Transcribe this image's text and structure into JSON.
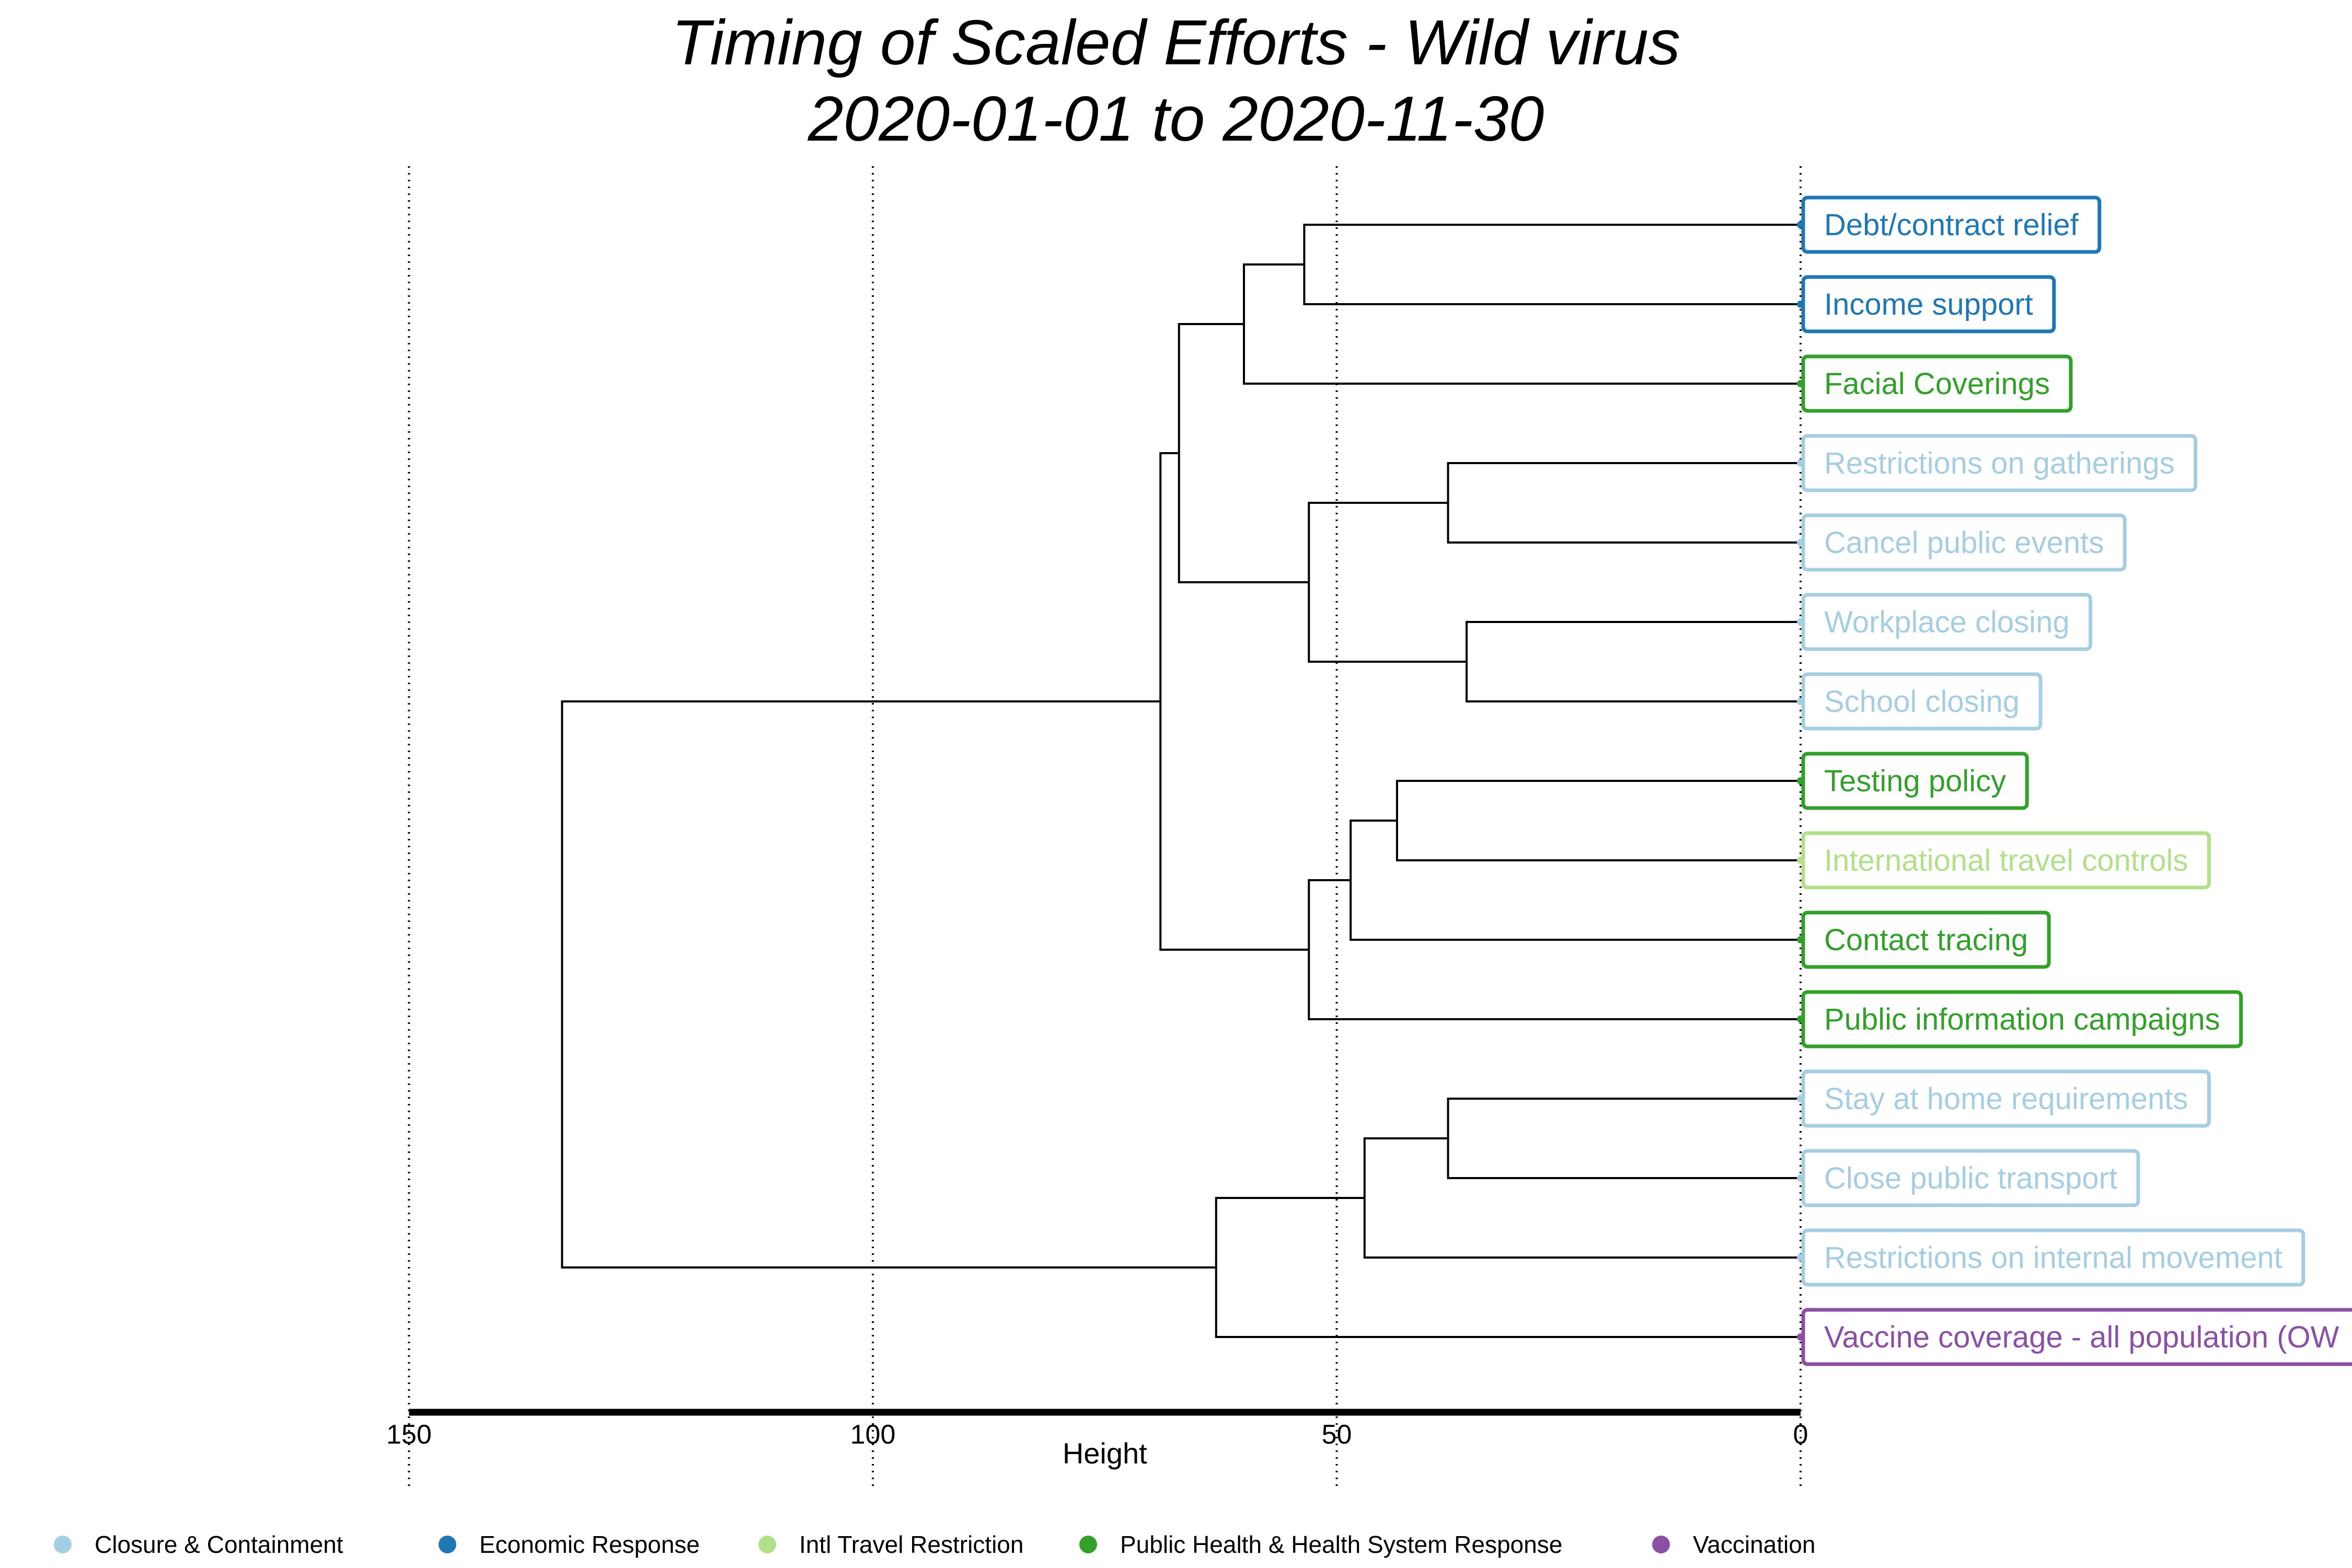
{
  "title": "Timing of Scaled Efforts - Wild virus",
  "subtitle": "2020-01-01 to 2020-11-30",
  "chart_data": {
    "type": "dendrogram",
    "title": "Timing of Scaled Efforts - Wild virus",
    "subtitle": "2020-01-01 to 2020-11-30",
    "xlabel": "Height",
    "x_ticks": [
      150,
      100,
      50,
      0
    ],
    "xlim": [
      150,
      0
    ],
    "grid": "vertical dotted lines at ticks",
    "legend_position": "bottom",
    "categories": [
      {
        "name": "Closure & Containment",
        "color": "#a6cee3"
      },
      {
        "name": "Economic Response",
        "color": "#1f78b4"
      },
      {
        "name": "Intl Travel Restriction",
        "color": "#b2df8a"
      },
      {
        "name": "Public Health & Health System Response",
        "color": "#33a02c"
      },
      {
        "name": "Vaccination",
        "color": "#8b4fa6"
      }
    ],
    "leaves": [
      {
        "label": "Debt/contract relief",
        "category": 1
      },
      {
        "label": "Income support",
        "category": 1
      },
      {
        "label": "Facial Coverings",
        "category": 3
      },
      {
        "label": "Restrictions on gatherings",
        "category": 0
      },
      {
        "label": "Cancel public events",
        "category": 0
      },
      {
        "label": "Workplace closing",
        "category": 0
      },
      {
        "label": "School closing",
        "category": 0
      },
      {
        "label": "Testing policy",
        "category": 3
      },
      {
        "label": "International travel controls",
        "category": 2
      },
      {
        "label": "Contact tracing",
        "category": 3
      },
      {
        "label": "Public information campaigns",
        "category": 3
      },
      {
        "label": "Stay at home requirements",
        "category": 0
      },
      {
        "label": "Close public transport",
        "category": 0
      },
      {
        "label": "Restrictions on internal movement",
        "category": 0
      },
      {
        "label": "Vaccine coverage - all population (OW",
        "category": 4
      }
    ],
    "merges": [
      {
        "id": "m1",
        "a": 0,
        "b": 1,
        "height": 53.5
      },
      {
        "id": "m2",
        "a": "m1",
        "b": 2,
        "height": 60
      },
      {
        "id": "m3",
        "a": 3,
        "b": 4,
        "height": 38
      },
      {
        "id": "m4",
        "a": 5,
        "b": 6,
        "height": 36
      },
      {
        "id": "m5",
        "a": "m3",
        "b": "m4",
        "height": 53
      },
      {
        "id": "m6",
        "a": "m2",
        "b": "m5",
        "height": 67
      },
      {
        "id": "m7",
        "a": 7,
        "b": 8,
        "height": 43.5
      },
      {
        "id": "m8",
        "a": "m7",
        "b": 9,
        "height": 48.5
      },
      {
        "id": "m9",
        "a": "m8",
        "b": 10,
        "height": 53
      },
      {
        "id": "m10",
        "a": "m6",
        "b": "m9",
        "height": 69
      },
      {
        "id": "m11",
        "a": 11,
        "b": 12,
        "height": 38
      },
      {
        "id": "m12",
        "a": "m11",
        "b": 13,
        "height": 47
      },
      {
        "id": "m13",
        "a": "m12",
        "b": 14,
        "height": 63
      },
      {
        "id": "m14",
        "a": "m10",
        "b": "m13",
        "height": 133.5
      }
    ]
  }
}
